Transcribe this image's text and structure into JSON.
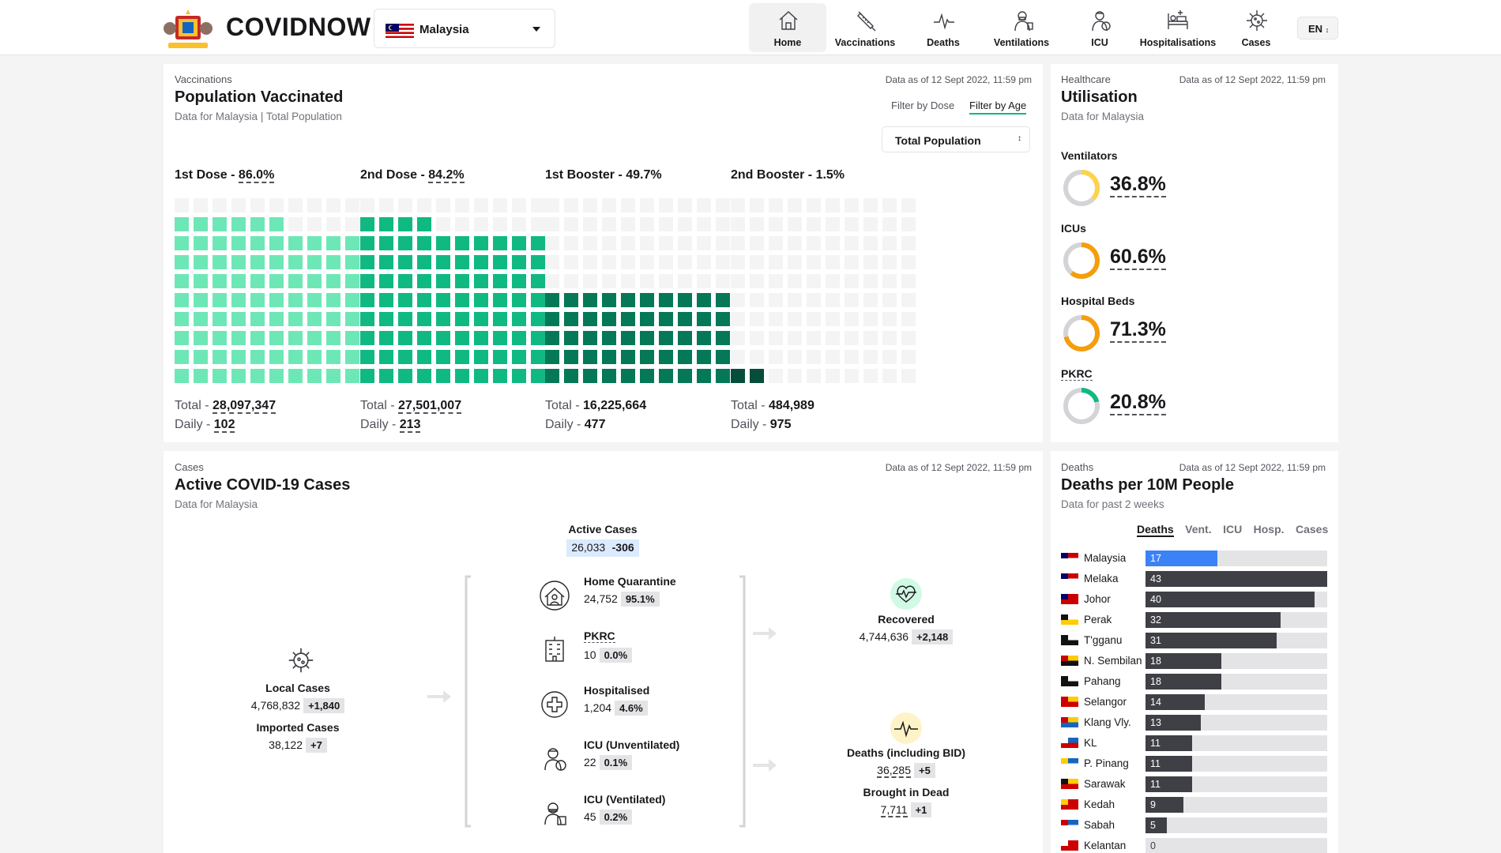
{
  "header": {
    "brand": "COVIDNOW",
    "country": "Malaysia",
    "lang": "EN",
    "nav": [
      {
        "label": "Home",
        "icon": "home-icon"
      },
      {
        "label": "Vaccinations",
        "icon": "syringe-icon"
      },
      {
        "label": "Deaths",
        "icon": "pulse-icon"
      },
      {
        "label": "Ventilations",
        "icon": "ventilator-icon"
      },
      {
        "label": "ICU",
        "icon": "icu-doctor-icon"
      },
      {
        "label": "Hospitalisations",
        "icon": "hospital-bed-icon"
      },
      {
        "label": "Cases",
        "icon": "virus-icon"
      }
    ]
  },
  "vaccination": {
    "kicker": "Vaccinations",
    "title": "Population Vaccinated",
    "subtitle_place": "Data for Malaysia",
    "subtitle_sep": "|",
    "subtitle_pop": "Total Population",
    "asof": "Data as of 12 Sept 2022, 11:59 pm",
    "filter_dose": "Filter by Dose",
    "filter_age": "Filter by Age",
    "select_value": "Total Population",
    "doses": [
      {
        "label": "1st Dose - ",
        "pct": "86.0%",
        "percent": 86.0,
        "total_label": "Total - ",
        "total": "28,097,347",
        "daily_label": "Daily - ",
        "daily": "102",
        "color": "#6ee7b7"
      },
      {
        "label": "2nd Dose - ",
        "pct": "84.2%",
        "percent": 84.2,
        "total_label": "Total - ",
        "total": "27,501,007",
        "daily_label": "Daily - ",
        "daily": "213",
        "color": "#10b981"
      },
      {
        "label": "1st Booster - ",
        "pct": "49.7%",
        "percent": 49.7,
        "total_label": "Total - ",
        "total": "16,225,664",
        "daily_label": "Daily - ",
        "daily": "477",
        "color": "#047857"
      },
      {
        "label": "2nd Booster - ",
        "pct": "1.5%",
        "percent": 1.5,
        "total_label": "Total - ",
        "total": "484,989",
        "daily_label": "Daily - ",
        "daily": "975",
        "color": "#064e3b"
      }
    ]
  },
  "healthcare": {
    "kicker": "Healthcare",
    "title": "Utilisation",
    "subtitle": "Data for Malaysia",
    "asof": "Data as of 12 Sept 2022, 11:59 pm",
    "items": [
      {
        "label": "Ventilators",
        "value": "36.8%",
        "percent": 36.8,
        "color": "#fcd34d"
      },
      {
        "label": "ICUs",
        "value": "60.6%",
        "percent": 60.6,
        "color": "#f59e0b"
      },
      {
        "label": "Hospital Beds",
        "value": "71.3%",
        "percent": 71.3,
        "color": "#f59e0b"
      },
      {
        "label": "PKRC",
        "value": "20.8%",
        "percent": 20.8,
        "color": "#10b981"
      }
    ]
  },
  "cases": {
    "kicker": "Cases",
    "title": "Active COVID-19 Cases",
    "subtitle": "Data for Malaysia",
    "asof": "Data as of 12 Sept 2022, 11:59 pm",
    "active_label": "Active Cases",
    "active_value": "26,033",
    "active_delta": "-306",
    "local_label": "Local Cases",
    "local_value": "4,768,832",
    "local_delta": "+1,840",
    "imported_label": "Imported Cases",
    "imported_value": "38,122",
    "imported_delta": "+7",
    "breakdown": [
      {
        "label": "Home Quarantine",
        "value": "24,752",
        "pct": "95.1%",
        "icon": "home-quarantine-icon"
      },
      {
        "label": "PKRC",
        "value": "10",
        "pct": "0.0%",
        "icon": "pkrc-building-icon"
      },
      {
        "label": "Hospitalised",
        "value": "1,204",
        "pct": "4.6%",
        "icon": "hospital-cross-icon"
      },
      {
        "label": "ICU (Unventilated)",
        "value": "22",
        "pct": "0.1%",
        "icon": "icu-unventilated-icon"
      },
      {
        "label": "ICU (Ventilated)",
        "value": "45",
        "pct": "0.2%",
        "icon": "icu-ventilated-icon"
      }
    ],
    "recovered_label": "Recovered",
    "recovered_value": "4,744,636",
    "recovered_delta": "+2,148",
    "deaths_label": "Deaths (including BID)",
    "deaths_value": "36,285",
    "deaths_delta": "+5",
    "bid_label": "Brought in Dead",
    "bid_value": "7,711",
    "bid_delta": "+1"
  },
  "deaths": {
    "kicker": "Deaths",
    "title": "Deaths per 10M People",
    "subtitle": "Data for past 2 weeks",
    "asof": "Data as of 12 Sept 2022, 11:59 pm",
    "tabs": [
      "Deaths",
      "Vent.",
      "ICU",
      "Hosp.",
      "Cases"
    ],
    "max": 43,
    "rows": [
      {
        "name": "Malaysia",
        "value": 17,
        "highlight": true
      },
      {
        "name": "Melaka",
        "value": 43
      },
      {
        "name": "Johor",
        "value": 40
      },
      {
        "name": "Perak",
        "value": 32
      },
      {
        "name": "T'gganu",
        "value": 31
      },
      {
        "name": "N. Sembilan",
        "value": 18
      },
      {
        "name": "Pahang",
        "value": 18
      },
      {
        "name": "Selangor",
        "value": 14
      },
      {
        "name": "Klang Vly.",
        "value": 13
      },
      {
        "name": "KL",
        "value": 11
      },
      {
        "name": "P. Pinang",
        "value": 11
      },
      {
        "name": "Sarawak",
        "value": 11
      },
      {
        "name": "Kedah",
        "value": 9
      },
      {
        "name": "Sabah",
        "value": 5
      },
      {
        "name": "Kelantan",
        "value": 0
      }
    ],
    "colors": {
      "bar": "#3f3f46",
      "highlight": "#3b82f6",
      "track": "#e4e4e7"
    }
  }
}
